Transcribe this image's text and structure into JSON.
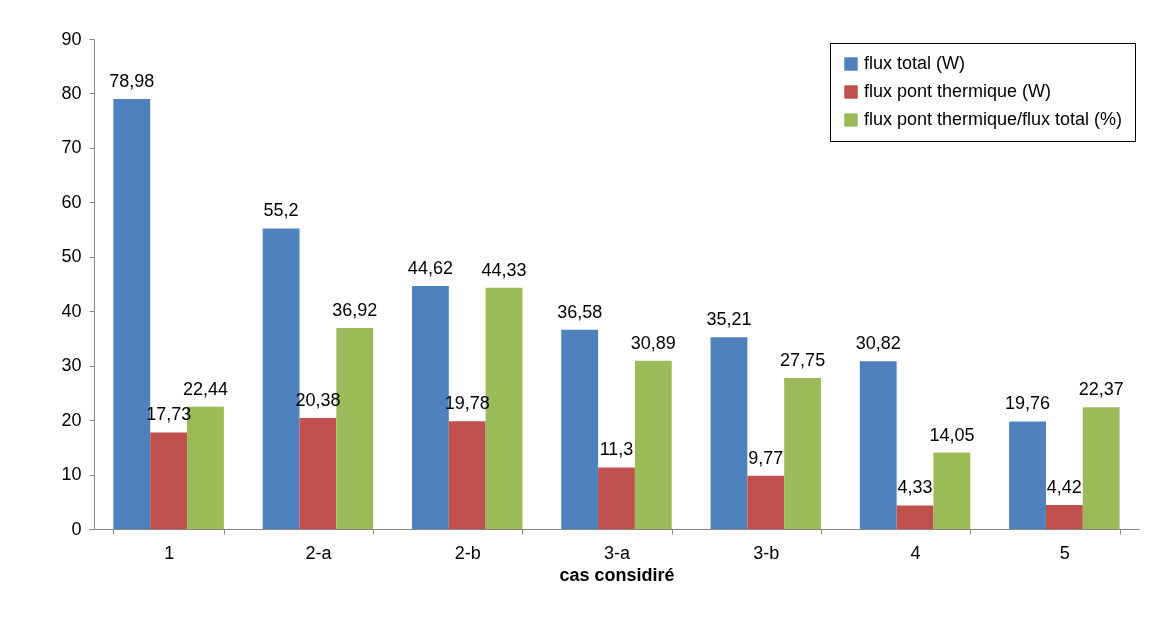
{
  "chart_data": {
    "type": "bar",
    "xlabel": "cas considiré",
    "categories": [
      "1",
      "2-a",
      "2-b",
      "3-a",
      "3-b",
      "4",
      "5"
    ],
    "series": [
      {
        "name": "flux total (W)",
        "color": "#4f81bd",
        "values": [
          78.98,
          55.2,
          44.62,
          36.58,
          35.21,
          30.82,
          19.76
        ],
        "value_labels": [
          "78,98",
          "55,2",
          "44,62",
          "36,58",
          "35,21",
          "30,82",
          "19,76"
        ]
      },
      {
        "name": "flux pont thermique (W)",
        "color": "#c0504d",
        "values": [
          17.73,
          20.38,
          19.78,
          11.3,
          9.77,
          4.33,
          4.42
        ],
        "value_labels": [
          "17,73",
          "20,38",
          "19,78",
          "11,3",
          "9,77",
          "4,33",
          "4,42"
        ]
      },
      {
        "name": "flux pont thermique/flux total (%)",
        "color": "#9bbb59",
        "values": [
          22.44,
          36.92,
          44.33,
          30.89,
          27.75,
          14.05,
          22.37
        ],
        "value_labels": [
          "22,44",
          "36,92",
          "44,33",
          "30,89",
          "27,75",
          "14,05",
          "22,37"
        ]
      }
    ],
    "ylim": [
      0,
      90
    ],
    "yticks": [
      0,
      10,
      20,
      30,
      40,
      50,
      60,
      70,
      80,
      90
    ],
    "grid": false,
    "legend": "top right"
  }
}
